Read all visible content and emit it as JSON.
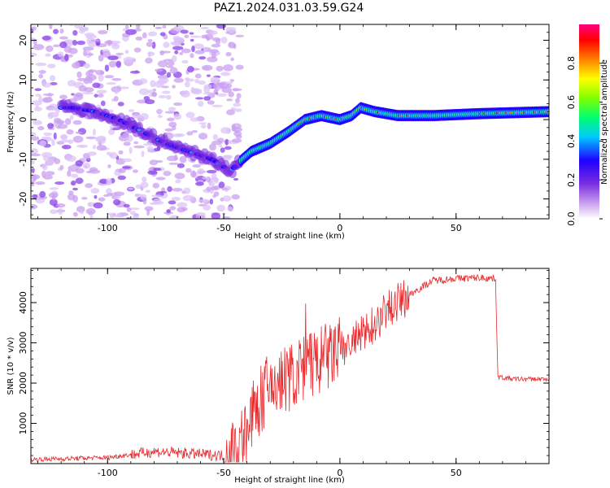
{
  "title": "PAZ1.2024.031.03.59.G24",
  "chart_data": [
    {
      "type": "heatmap",
      "title": "PAZ1.2024.031.03.59.G24",
      "xlabel": "Height of straight line (km)",
      "ylabel": "Frequency (Hz)",
      "xlim": [
        -133,
        90
      ],
      "ylim": [
        -25,
        24
      ],
      "xticks": [
        -100,
        -50,
        0,
        50
      ],
      "yticks": [
        -20,
        -10,
        0,
        10,
        20
      ],
      "colorbar": {
        "label": "Normalized spectral amplitude",
        "range": [
          0,
          1
        ],
        "ticks": [
          0.0,
          0.2,
          0.4,
          0.6,
          0.8
        ],
        "colormap": [
          "#ffffff",
          "#c9a0f0",
          "#7a2ee0",
          "#2000ff",
          "#00c8ff",
          "#00ff70",
          "#80ff00",
          "#ffff00",
          "#ff8000",
          "#ff0000",
          "#ff0080"
        ]
      },
      "ridge": {
        "x": [
          -115,
          -105,
          -95,
          -85,
          -75,
          -65,
          -55,
          -47,
          -42,
          -38,
          -30,
          -22,
          -15,
          -8,
          0,
          5,
          9,
          15,
          25,
          40,
          60,
          90
        ],
        "y": [
          3,
          2,
          0,
          -3,
          -6,
          -8,
          -10,
          -13,
          -10,
          -8,
          -6,
          -3,
          0,
          1,
          0,
          1,
          3,
          2,
          1,
          1,
          1.5,
          2
        ]
      }
    },
    {
      "type": "line",
      "xlabel": "Height of straight line (km)",
      "ylabel": "SNR (10 * v/v)",
      "xlim": [
        -133,
        90
      ],
      "ylim": [
        0,
        4850
      ],
      "xticks": [
        -100,
        -50,
        0,
        50
      ],
      "yticks": [
        1000,
        2000,
        3000,
        4000
      ],
      "color": "#e8282b",
      "trend": {
        "x": [
          -133,
          -100,
          -80,
          -50,
          -45,
          -40,
          -35,
          -30,
          -20,
          -10,
          0,
          10,
          20,
          30,
          40,
          50,
          60,
          67,
          68,
          75,
          90
        ],
        "y": [
          100,
          150,
          300,
          200,
          350,
          800,
          1500,
          1900,
          2200,
          2500,
          2800,
          3200,
          3800,
          4200,
          4550,
          4600,
          4620,
          4600,
          2150,
          2100,
          2100
        ]
      }
    }
  ]
}
